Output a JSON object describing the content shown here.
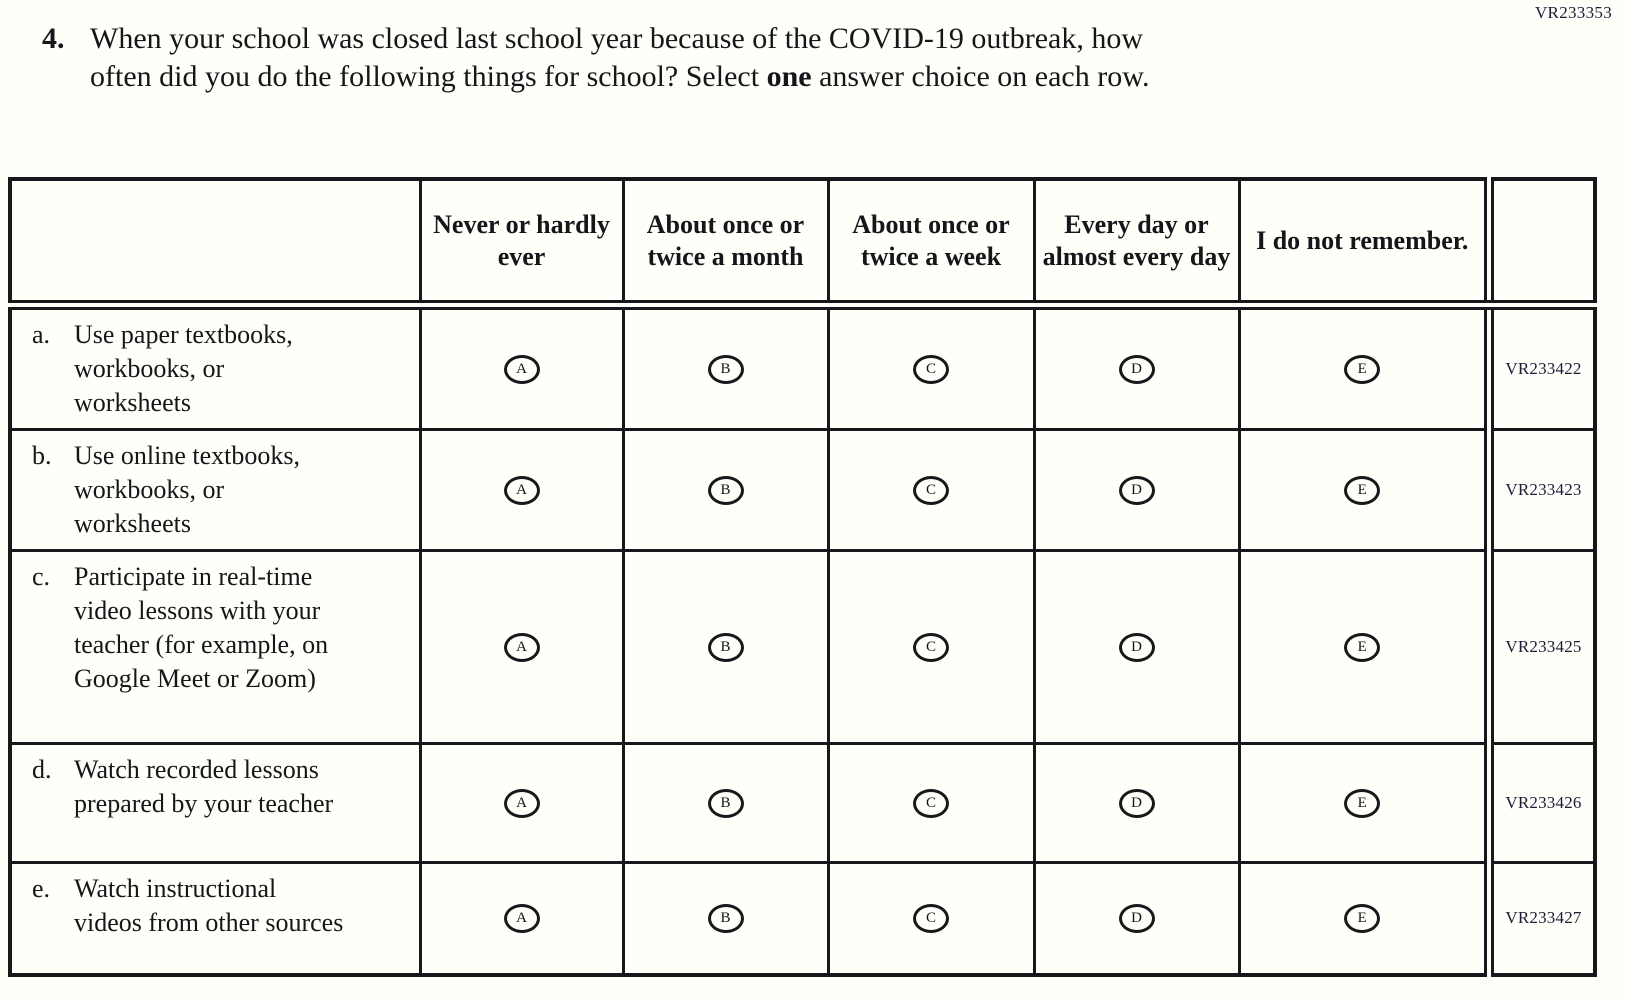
{
  "page": {
    "code": "VR233353",
    "colors": {
      "background": "#fffef8",
      "ink": "#17171c",
      "code_text": "#1c1c38"
    }
  },
  "question": {
    "number": "4.",
    "text_before_bold": "When your school was closed last school year because of the COVID-19 outbreak, how often did you do the following things for school? Select ",
    "bold_word": "one",
    "text_after_bold": " answer choice on each row."
  },
  "table": {
    "columns": [
      "Never or hardly ever",
      "About once or twice a month",
      "About once or twice a week",
      "Every day or almost every day",
      "I do not remember."
    ],
    "options": [
      "A",
      "B",
      "C",
      "D",
      "E"
    ],
    "rows": [
      {
        "letter": "a.",
        "text": "Use paper textbooks, workbooks, or worksheets",
        "code": "VR233422"
      },
      {
        "letter": "b.",
        "text": "Use online textbooks, workbooks, or worksheets",
        "code": "VR233423"
      },
      {
        "letter": "c.",
        "text": "Participate in real-time video lessons with your teacher (for example, on Google Meet or Zoom)",
        "code": "VR233425"
      },
      {
        "letter": "d.",
        "text": "Watch recorded lessons prepared by your teacher",
        "code": "VR233426"
      },
      {
        "letter": "e.",
        "text": "Watch instructional videos from other sources",
        "code": "VR233427"
      }
    ]
  }
}
